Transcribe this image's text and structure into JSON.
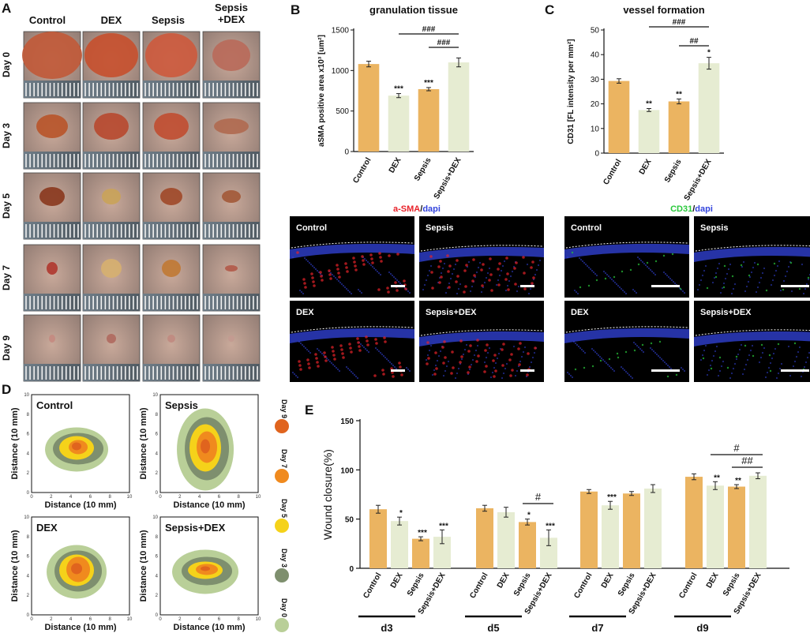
{
  "panels": {
    "A": "A",
    "B": "B",
    "C": "C",
    "D": "D",
    "E": "E"
  },
  "panel_a": {
    "columns": [
      "Control",
      "DEX",
      "Sepsis",
      "Sepsis\n+DEX"
    ],
    "rows": [
      "Day 0",
      "Day 3",
      "Day 5",
      "Day 7",
      "Day 9"
    ]
  },
  "microscopy_b": {
    "stain_marker": "a-SMA",
    "stain_sep": "/",
    "stain_nuclear": "dapi",
    "labels": [
      "Control",
      "Sepsis",
      "DEX",
      "Sepsis+DEX"
    ],
    "colors": {
      "marker": "#e8222a",
      "nuclear": "#3344dd"
    }
  },
  "microscopy_c": {
    "stain_marker": "CD31",
    "stain_sep": "/",
    "stain_nuclear": "dapi",
    "labels": [
      "Control",
      "Sepsis",
      "DEX",
      "Sepsis+DEX"
    ],
    "colors": {
      "marker": "#28c83a",
      "nuclear": "#3344dd"
    }
  },
  "panel_d": {
    "plots": [
      "Control",
      "Sepsis",
      "DEX",
      "Sepsis+DEX"
    ],
    "xlabel": "Distance (10 mm)",
    "ylabel": "Distance (10 mm)",
    "ticks": [
      "0",
      "2",
      "4",
      "6",
      "8",
      "10"
    ],
    "legend": [
      {
        "label": "Day 9",
        "color": "#e0641e"
      },
      {
        "label": "Day 7",
        "color": "#f08a1e"
      },
      {
        "label": "Day 5",
        "color": "#f5d21a"
      },
      {
        "label": "Day 3",
        "color": "#7e8f6e"
      },
      {
        "label": "Day 0",
        "color": "#b9cf98"
      }
    ]
  },
  "chart_data": [
    {
      "type": "bar",
      "title": "granulation tissue",
      "xlabel": "",
      "ylabel": "aSMA positive area x10³ [um²]",
      "categories": [
        "Control",
        "DEX",
        "Sepsis",
        "Sepsis+DEX"
      ],
      "values": [
        1080,
        690,
        770,
        1100
      ],
      "errors": [
        35,
        25,
        20,
        55
      ],
      "significance": [
        "",
        "***",
        "***",
        ""
      ],
      "brackets": [
        {
          "from": "DEX",
          "to": "Sepsis+DEX",
          "label": "###"
        },
        {
          "from": "Sepsis",
          "to": "Sepsis+DEX",
          "label": "###"
        }
      ],
      "ylim": [
        0,
        1500
      ],
      "yticks": [
        "0",
        "500",
        "1000",
        "1500"
      ],
      "colors": [
        "#ebb461",
        "#e6ecd2"
      ]
    },
    {
      "type": "bar",
      "title": "vessel formation",
      "xlabel": "",
      "ylabel": "CD31 [FL intensity per mm²]",
      "categories": [
        "Control",
        "DEX",
        "Sepsis",
        "Sepsis+DEX"
      ],
      "values": [
        29.3,
        17.5,
        21,
        36.5
      ],
      "errors": [
        0.9,
        0.6,
        1.0,
        2.4
      ],
      "significance": [
        "",
        "**",
        "**",
        "*"
      ],
      "brackets": [
        {
          "from": "DEX",
          "to": "Sepsis+DEX",
          "label": "###"
        },
        {
          "from": "Sepsis",
          "to": "Sepsis+DEX",
          "label": "##"
        }
      ],
      "ylim": [
        0,
        50
      ],
      "yticks": [
        "0",
        "10",
        "20",
        "30",
        "40",
        "50"
      ],
      "colors": [
        "#ebb461",
        "#e6ecd2"
      ]
    },
    {
      "type": "bar",
      "title": "",
      "xlabel": "",
      "ylabel": "Wound closure(%)",
      "groups": [
        "d3",
        "d5",
        "d7",
        "d9"
      ],
      "categories": [
        "Control",
        "DEX",
        "Sepsis",
        "Sepsis+DEX"
      ],
      "series": [
        {
          "group": "d3",
          "values": [
            60,
            48,
            30,
            32
          ],
          "errors": [
            4,
            4,
            2,
            7
          ],
          "significance": [
            "",
            "*",
            "***",
            "***"
          ]
        },
        {
          "group": "d5",
          "values": [
            61,
            57,
            47,
            31
          ],
          "errors": [
            3,
            5,
            3,
            8
          ],
          "significance": [
            "",
            "",
            "*",
            "***"
          ]
        },
        {
          "group": "d7",
          "values": [
            78,
            64,
            76,
            81
          ],
          "errors": [
            2,
            4,
            2,
            4
          ],
          "significance": [
            "",
            "***",
            "",
            ""
          ]
        },
        {
          "group": "d9",
          "values": [
            93,
            84,
            83,
            94
          ],
          "errors": [
            3,
            4,
            2,
            3
          ],
          "significance": [
            "",
            "**",
            "**",
            ""
          ]
        }
      ],
      "brackets": [
        {
          "group": "d5",
          "from": "Sepsis",
          "to": "Sepsis+DEX",
          "label": "#"
        },
        {
          "group": "d9",
          "from": "DEX",
          "to": "Sepsis+DEX",
          "label": "#"
        },
        {
          "group": "d9",
          "from": "Sepsis",
          "to": "Sepsis+DEX",
          "label": "##"
        }
      ],
      "ylim": [
        0,
        150
      ],
      "yticks": [
        "0",
        "50",
        "100",
        "150"
      ],
      "colors": [
        "#ebb461",
        "#e6ecd2"
      ]
    }
  ]
}
